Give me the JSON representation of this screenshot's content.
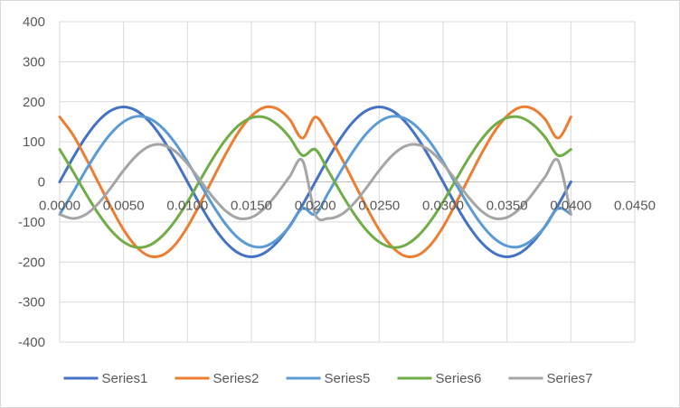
{
  "chart_data": {
    "type": "line",
    "title": "",
    "xlabel": "",
    "ylabel": "",
    "xlim": [
      0,
      0.045
    ],
    "ylim": [
      -400,
      400
    ],
    "x_ticks": [
      "0.0000",
      "0.0050",
      "0.0100",
      "0.0150",
      "0.0200",
      "0.0250",
      "0.0300",
      "0.0350",
      "0.0400",
      "0.0450"
    ],
    "y_ticks": [
      "400",
      "300",
      "200",
      "100",
      "0",
      "-100",
      "-200",
      "-300",
      "-400"
    ],
    "grid": "vertical and horizontal major gridlines",
    "legend_position": "bottom",
    "x": [
      0.0,
      0.001,
      0.002,
      0.003,
      0.004,
      0.005,
      0.006,
      0.007,
      0.008,
      0.009,
      0.01,
      0.011,
      0.012,
      0.013,
      0.014,
      0.015,
      0.016,
      0.017,
      0.018,
      0.019,
      0.02,
      0.021,
      0.022,
      0.023,
      0.024,
      0.025,
      0.026,
      0.027,
      0.028,
      0.029,
      0.03,
      0.031,
      0.032,
      0.033,
      0.034,
      0.035,
      0.036,
      0.037,
      0.038,
      0.039,
      0.04
    ],
    "series": [
      {
        "name": "Series1",
        "color": "#4472c4",
        "values": [
          0,
          57.8,
          109.9,
          151.3,
          177.8,
          187,
          177.8,
          151.3,
          109.9,
          57.8,
          0,
          -57.8,
          -109.9,
          -151.3,
          -177.8,
          -187,
          -177.8,
          -151.3,
          -109.9,
          -57.8,
          0,
          57.8,
          109.9,
          151.3,
          177.8,
          187,
          177.8,
          151.3,
          109.9,
          57.8,
          0,
          -57.8,
          -109.9,
          -151.3,
          -177.8,
          -187,
          -177.8,
          -151.3,
          -109.9,
          -57.8,
          0
        ]
      },
      {
        "name": "Series2",
        "color": "#ed7d31",
        "values": [
          162,
          119.5,
          62.3,
          0,
          -62.3,
          -119.5,
          -162,
          -185,
          -183.5,
          -158,
          -112.5,
          -53.5,
          8.5,
          70,
          124.5,
          164.5,
          185.9,
          182.8,
          155.8,
          109.2,
          162,
          119.5,
          62.3,
          0,
          -62.3,
          -119.5,
          -162,
          -185,
          -183.5,
          -158,
          -112.5,
          -53.5,
          8.5,
          70,
          124.5,
          164.5,
          185.9,
          182.8,
          155.8,
          109.2,
          162
        ]
      },
      {
        "name": "Series5",
        "color": "#5b9bd5",
        "values": [
          -81,
          -28.5,
          26.8,
          78,
          120.5,
          150,
          163.5,
          158.5,
          136,
          98.5,
          50,
          -5,
          -59,
          -106,
          -141,
          -160,
          -161.5,
          -144,
          -111,
          -66,
          -81,
          -28.5,
          26.8,
          78,
          120.5,
          150,
          163.5,
          158.5,
          136,
          98.5,
          50,
          -5,
          -59,
          -106,
          -141,
          -160,
          -161.5,
          -144,
          -111,
          -66,
          -81
        ]
      },
      {
        "name": "Series6",
        "color": "#70ad47",
        "values": [
          81,
          28.5,
          -26.8,
          -78,
          -120.5,
          -150,
          -163.5,
          -158.5,
          -136,
          -98.5,
          -50,
          5,
          59,
          106,
          141,
          160,
          161.5,
          144,
          111,
          66,
          81,
          28.5,
          -26.8,
          -78,
          -120.5,
          -150,
          -163.5,
          -158.5,
          -136,
          -98.5,
          -50,
          5,
          59,
          106,
          141,
          160,
          161.5,
          144,
          111,
          66,
          81
        ]
      },
      {
        "name": "Series7",
        "color": "#a5a5a5",
        "values": [
          -81,
          -91.4,
          -82.2,
          -54.6,
          -14.9,
          28.5,
          65.4,
          88.6,
          92.9,
          77.2,
          45.2,
          3.6,
          -38.6,
          -72.7,
          -91,
          -88.7,
          -66.8,
          -29.9,
          13.4,
          53.1,
          -81,
          -91.4,
          -82.2,
          -54.6,
          -14.9,
          28.5,
          65.4,
          88.6,
          92.9,
          77.2,
          45.2,
          3.6,
          -38.6,
          -72.7,
          -91,
          -88.7,
          -66.8,
          -29.9,
          13.4,
          53.1,
          -81
        ]
      }
    ]
  }
}
